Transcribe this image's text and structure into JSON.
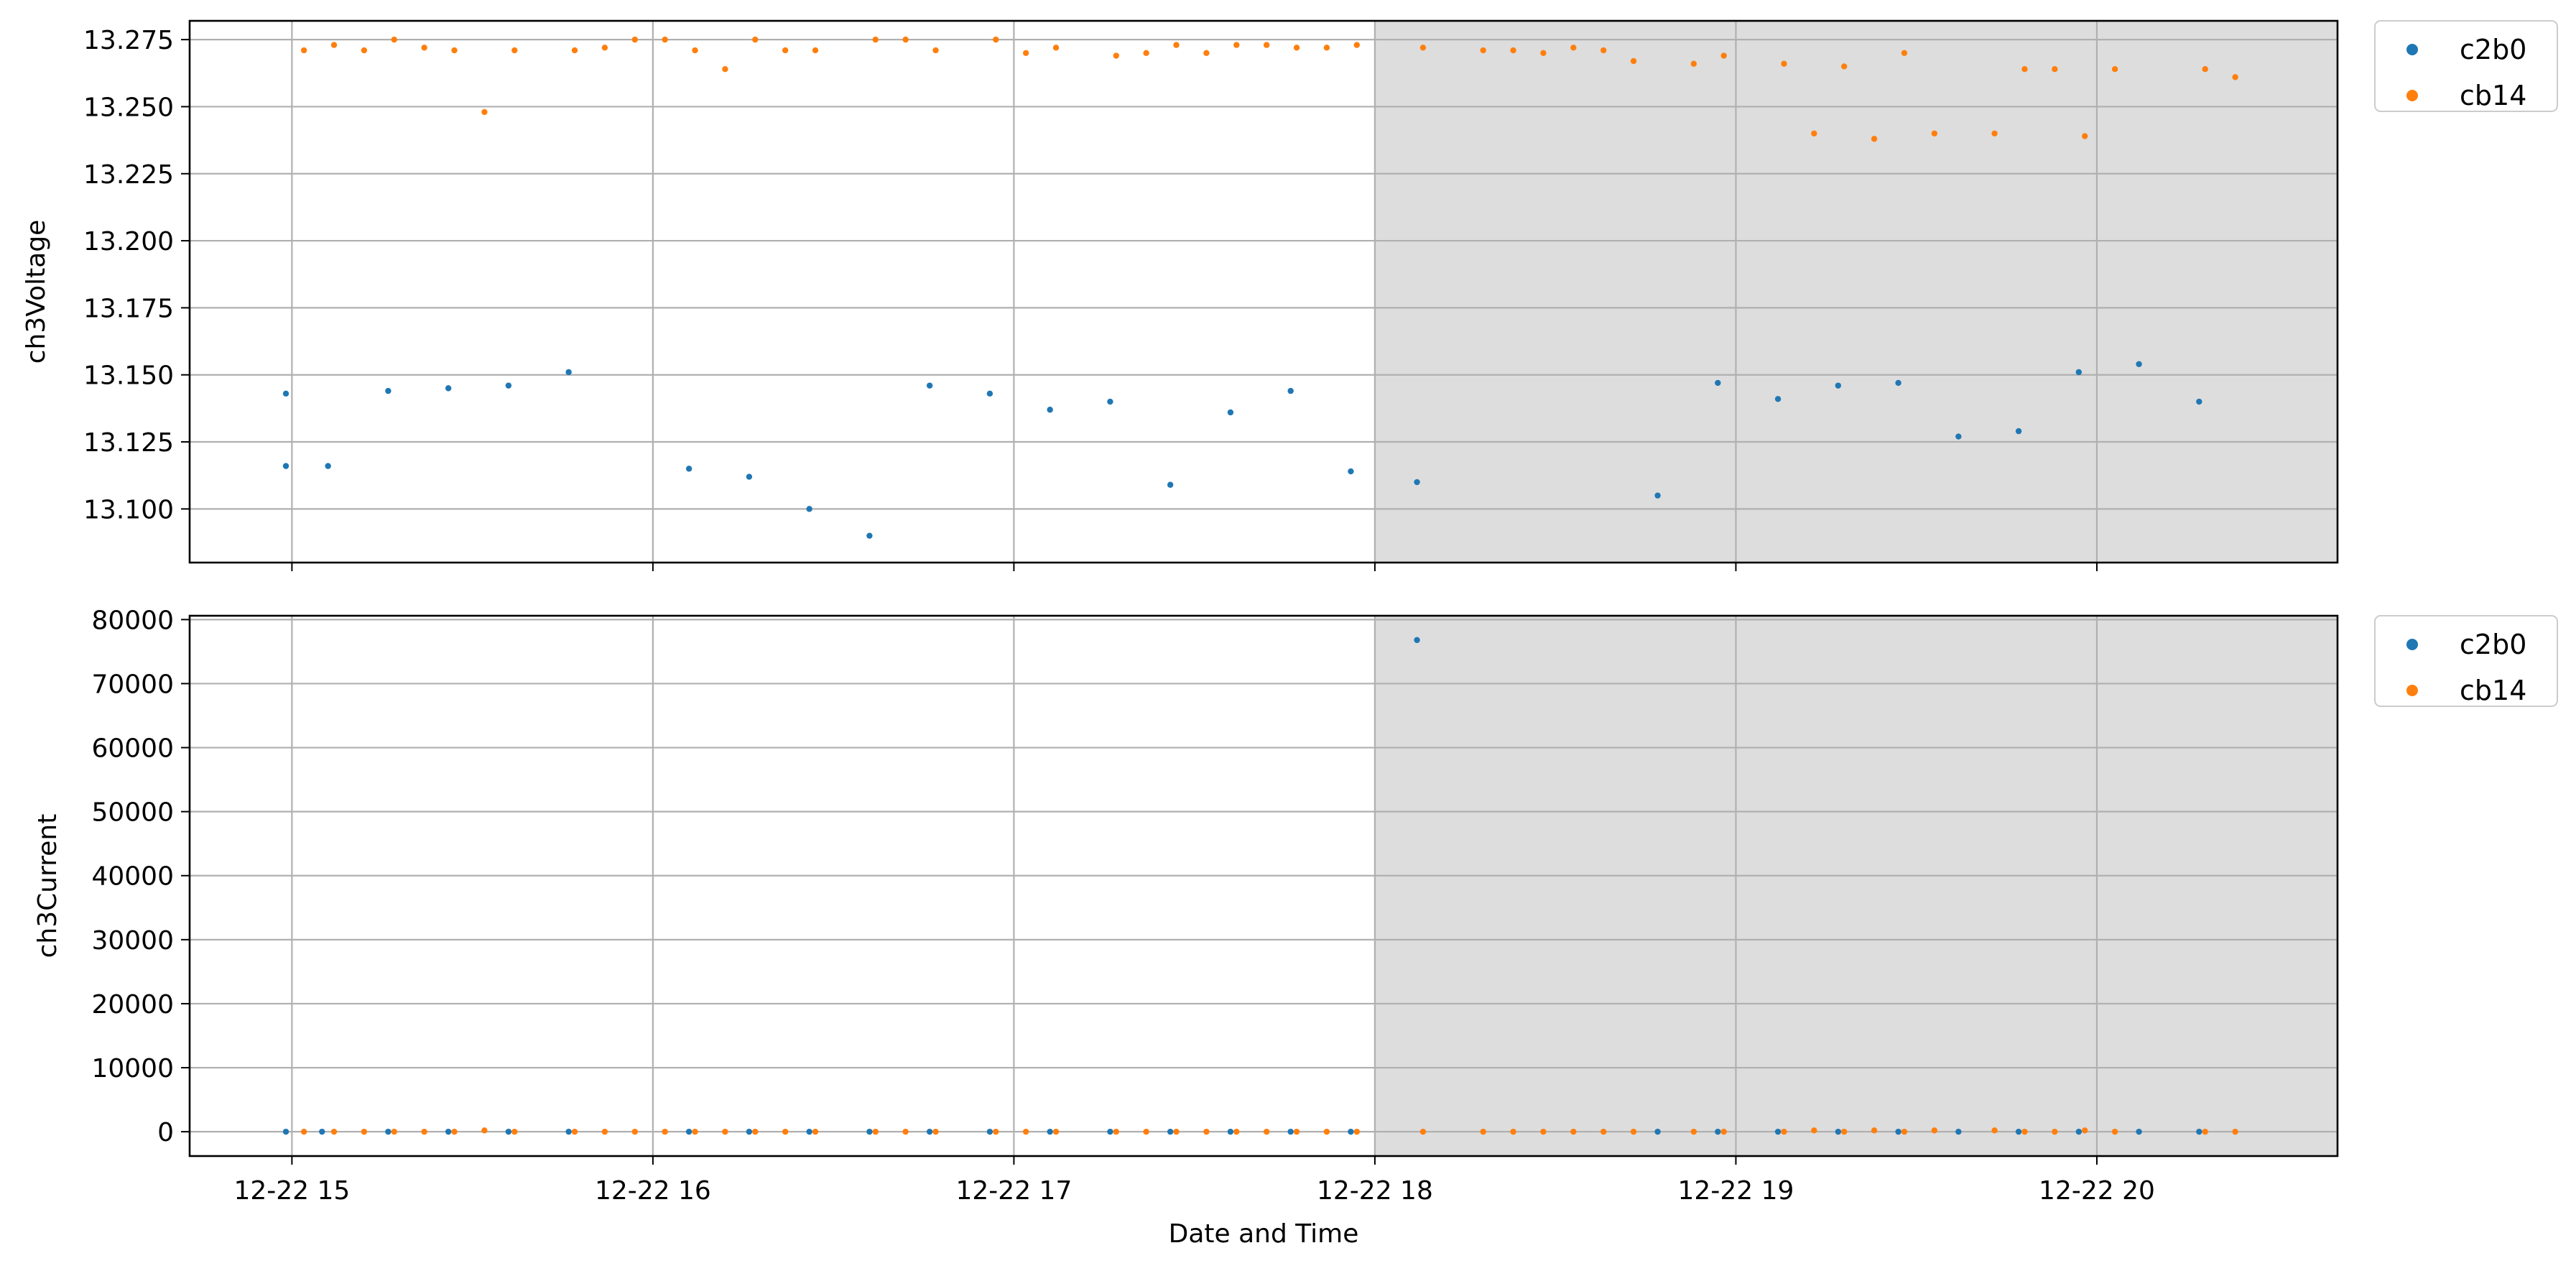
{
  "chart_data": [
    {
      "type": "scatter",
      "ylabel": "ch3Voltage",
      "xlabel": "",
      "ylim": [
        13.08,
        13.282
      ],
      "yticks": [
        13.1,
        13.125,
        13.15,
        13.175,
        13.2,
        13.225,
        13.25,
        13.275
      ],
      "ytick_labels": [
        "13.100",
        "13.125",
        "13.150",
        "13.175",
        "13.200",
        "13.225",
        "13.250",
        "13.275"
      ],
      "grid": true,
      "legend": "outside-top-right",
      "shaded_region": {
        "x_start": "2023-12-22 18:00",
        "color": "#dddddd"
      },
      "series": [
        {
          "name": "c2b0",
          "color": "#1f77b4",
          "x": [
            "2023-12-22 14:59",
            "2023-12-22 14:59",
            "2023-12-22 15:06",
            "2023-12-22 15:16",
            "2023-12-22 15:26",
            "2023-12-22 15:36",
            "2023-12-22 15:46",
            "2023-12-22 16:06",
            "2023-12-22 16:16",
            "2023-12-22 16:26",
            "2023-12-22 16:36",
            "2023-12-22 16:46",
            "2023-12-22 16:56",
            "2023-12-22 17:06",
            "2023-12-22 17:16",
            "2023-12-22 17:26",
            "2023-12-22 17:36",
            "2023-12-22 17:46",
            "2023-12-22 17:56",
            "2023-12-22 18:07",
            "2023-12-22 18:47",
            "2023-12-22 18:57",
            "2023-12-22 19:07",
            "2023-12-22 19:17",
            "2023-12-22 19:27",
            "2023-12-22 19:37",
            "2023-12-22 19:47",
            "2023-12-22 19:57",
            "2023-12-22 20:07",
            "2023-12-22 20:17"
          ],
          "values": [
            13.143,
            13.116,
            13.116,
            13.144,
            13.145,
            13.146,
            13.151,
            13.115,
            13.112,
            13.1,
            13.09,
            13.146,
            13.143,
            13.137,
            13.14,
            13.109,
            13.136,
            13.144,
            13.114,
            13.11,
            13.105,
            13.147,
            13.141,
            13.146,
            13.147,
            13.127,
            13.129,
            13.151,
            13.154,
            13.14
          ]
        },
        {
          "name": "cb14",
          "color": "#ff7f0e",
          "x": [
            "2023-12-22 15:02",
            "2023-12-22 15:07",
            "2023-12-22 15:12",
            "2023-12-22 15:17",
            "2023-12-22 15:22",
            "2023-12-22 15:27",
            "2023-12-22 15:32",
            "2023-12-22 15:37",
            "2023-12-22 15:47",
            "2023-12-22 15:52",
            "2023-12-22 15:57",
            "2023-12-22 16:02",
            "2023-12-22 16:07",
            "2023-12-22 16:12",
            "2023-12-22 16:17",
            "2023-12-22 16:22",
            "2023-12-22 16:27",
            "2023-12-22 16:37",
            "2023-12-22 16:42",
            "2023-12-22 16:47",
            "2023-12-22 16:57",
            "2023-12-22 17:02",
            "2023-12-22 17:07",
            "2023-12-22 17:17",
            "2023-12-22 17:22",
            "2023-12-22 17:27",
            "2023-12-22 17:32",
            "2023-12-22 17:37",
            "2023-12-22 17:42",
            "2023-12-22 17:47",
            "2023-12-22 17:52",
            "2023-12-22 17:57",
            "2023-12-22 18:08",
            "2023-12-22 18:18",
            "2023-12-22 18:23",
            "2023-12-22 18:28",
            "2023-12-22 18:33",
            "2023-12-22 18:38",
            "2023-12-22 18:43",
            "2023-12-22 18:53",
            "2023-12-22 18:58",
            "2023-12-22 19:08",
            "2023-12-22 19:13",
            "2023-12-22 19:18",
            "2023-12-22 19:23",
            "2023-12-22 19:28",
            "2023-12-22 19:33",
            "2023-12-22 19:43",
            "2023-12-22 19:48",
            "2023-12-22 19:53",
            "2023-12-22 19:58",
            "2023-12-22 20:03",
            "2023-12-22 20:18",
            "2023-12-22 20:23"
          ],
          "values": [
            13.271,
            13.273,
            13.271,
            13.275,
            13.272,
            13.271,
            13.248,
            13.271,
            13.271,
            13.272,
            13.275,
            13.275,
            13.271,
            13.264,
            13.275,
            13.271,
            13.271,
            13.275,
            13.275,
            13.271,
            13.275,
            13.27,
            13.272,
            13.269,
            13.27,
            13.273,
            13.27,
            13.273,
            13.273,
            13.272,
            13.272,
            13.273,
            13.272,
            13.271,
            13.271,
            13.27,
            13.272,
            13.271,
            13.267,
            13.266,
            13.269,
            13.266,
            13.24,
            13.265,
            13.238,
            13.27,
            13.24,
            13.24,
            13.264,
            13.264,
            13.239,
            13.264,
            13.264,
            13.261
          ]
        }
      ]
    },
    {
      "type": "scatter",
      "ylabel": "ch3Current",
      "xlabel": "Date and Time",
      "ylim": [
        -3800,
        80600
      ],
      "yticks": [
        0,
        10000,
        20000,
        30000,
        40000,
        50000,
        60000,
        70000,
        80000
      ],
      "ytick_labels": [
        "0",
        "10000",
        "20000",
        "30000",
        "40000",
        "50000",
        "60000",
        "70000",
        "80000"
      ],
      "xlim": [
        "2023-12-22 14:43",
        "2023-12-22 20:40"
      ],
      "xticks": [
        "2023-12-22 15:00",
        "2023-12-22 16:00",
        "2023-12-22 17:00",
        "2023-12-22 18:00",
        "2023-12-22 19:00",
        "2023-12-22 20:00"
      ],
      "xtick_labels": [
        "12-22 15",
        "12-22 16",
        "12-22 17",
        "12-22 18",
        "12-22 19",
        "12-22 20"
      ],
      "grid": true,
      "legend": "outside-top-right",
      "shaded_region": {
        "x_start": "2023-12-22 18:00",
        "color": "#dddddd"
      },
      "series": [
        {
          "name": "c2b0",
          "color": "#1f77b4",
          "x": [
            "2023-12-22 14:59",
            "2023-12-22 15:05",
            "2023-12-22 15:16",
            "2023-12-22 15:26",
            "2023-12-22 15:36",
            "2023-12-22 15:46",
            "2023-12-22 16:06",
            "2023-12-22 16:16",
            "2023-12-22 16:26",
            "2023-12-22 16:36",
            "2023-12-22 16:46",
            "2023-12-22 16:56",
            "2023-12-22 17:06",
            "2023-12-22 17:16",
            "2023-12-22 17:26",
            "2023-12-22 17:36",
            "2023-12-22 17:46",
            "2023-12-22 17:56",
            "2023-12-22 18:07",
            "2023-12-22 18:47",
            "2023-12-22 18:57",
            "2023-12-22 19:07",
            "2023-12-22 19:17",
            "2023-12-22 19:27",
            "2023-12-22 19:37",
            "2023-12-22 19:47",
            "2023-12-22 19:57",
            "2023-12-22 20:07",
            "2023-12-22 20:17"
          ],
          "values": [
            0,
            0,
            0,
            0,
            0,
            0,
            0,
            0,
            0,
            0,
            0,
            0,
            0,
            0,
            0,
            0,
            0,
            0,
            76800,
            0,
            0,
            0,
            0,
            0,
            0,
            0,
            0,
            0,
            0
          ]
        },
        {
          "name": "cb14",
          "color": "#ff7f0e",
          "x": [
            "2023-12-22 15:02",
            "2023-12-22 15:07",
            "2023-12-22 15:12",
            "2023-12-22 15:17",
            "2023-12-22 15:22",
            "2023-12-22 15:27",
            "2023-12-22 15:32",
            "2023-12-22 15:37",
            "2023-12-22 15:47",
            "2023-12-22 15:52",
            "2023-12-22 15:57",
            "2023-12-22 16:02",
            "2023-12-22 16:07",
            "2023-12-22 16:12",
            "2023-12-22 16:17",
            "2023-12-22 16:22",
            "2023-12-22 16:27",
            "2023-12-22 16:37",
            "2023-12-22 16:42",
            "2023-12-22 16:47",
            "2023-12-22 16:57",
            "2023-12-22 17:02",
            "2023-12-22 17:07",
            "2023-12-22 17:17",
            "2023-12-22 17:22",
            "2023-12-22 17:27",
            "2023-12-22 17:32",
            "2023-12-22 17:37",
            "2023-12-22 17:42",
            "2023-12-22 17:47",
            "2023-12-22 17:52",
            "2023-12-22 17:57",
            "2023-12-22 18:08",
            "2023-12-22 18:18",
            "2023-12-22 18:23",
            "2023-12-22 18:28",
            "2023-12-22 18:33",
            "2023-12-22 18:38",
            "2023-12-22 18:43",
            "2023-12-22 18:53",
            "2023-12-22 18:58",
            "2023-12-22 19:08",
            "2023-12-22 19:13",
            "2023-12-22 19:18",
            "2023-12-22 19:23",
            "2023-12-22 19:28",
            "2023-12-22 19:33",
            "2023-12-22 19:43",
            "2023-12-22 19:48",
            "2023-12-22 19:53",
            "2023-12-22 19:58",
            "2023-12-22 20:03",
            "2023-12-22 20:18",
            "2023-12-22 20:23"
          ],
          "values": [
            0,
            0,
            0,
            0,
            0,
            0,
            200,
            0,
            0,
            0,
            0,
            0,
            0,
            0,
            0,
            0,
            0,
            0,
            0,
            0,
            0,
            0,
            0,
            0,
            0,
            0,
            0,
            0,
            0,
            0,
            0,
            0,
            0,
            0,
            0,
            0,
            0,
            0,
            0,
            0,
            0,
            0,
            200,
            0,
            200,
            0,
            200,
            200,
            0,
            0,
            200,
            0,
            0,
            0
          ]
        }
      ]
    }
  ]
}
